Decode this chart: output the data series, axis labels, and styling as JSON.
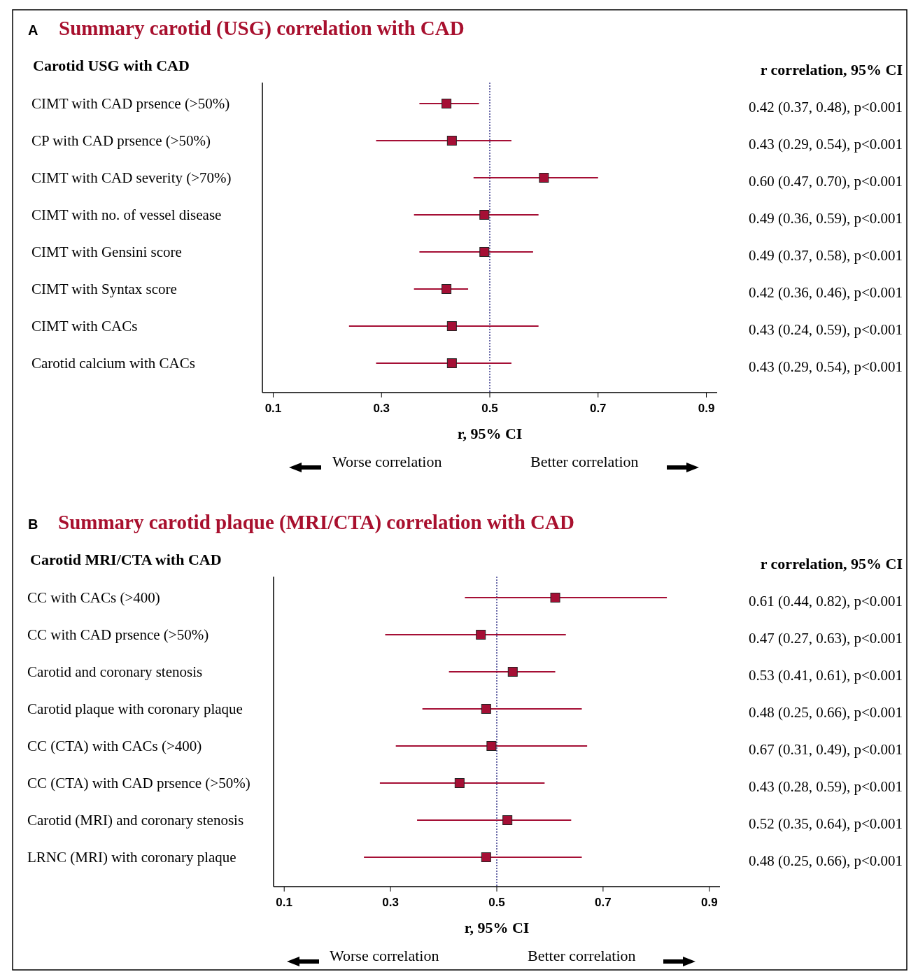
{
  "chart_data": [
    {
      "type": "scatter",
      "orientation": "horizontal",
      "title": "Summary carotid (USG) correlation with CAD",
      "ylabel": "Carotid USG with CAD",
      "xlabel": "r, 95% CI",
      "marker": "square",
      "color": "#a50f35",
      "grid": false,
      "categories": [
        "CIMT with CAD prsence (>50%)",
        "CP with CAD prsence (>50%)",
        "CIMT with CAD severity (>70%)",
        "CIMT with no. of vessel disease",
        "CIMT with Gensini score",
        "CIMT with Syntax score",
        "CIMT with CACs",
        "Carotid calcium with CACs"
      ],
      "values": [
        0.42,
        0.43,
        0.6,
        0.49,
        0.49,
        0.42,
        0.43,
        0.43
      ],
      "errors": [
        [
          0.37,
          0.48
        ],
        [
          0.29,
          0.54
        ],
        [
          0.47,
          0.7
        ],
        [
          0.36,
          0.59
        ],
        [
          0.37,
          0.58
        ],
        [
          0.36,
          0.46
        ],
        [
          0.24,
          0.59
        ],
        [
          0.29,
          0.54
        ]
      ],
      "value_labels": [
        "0.42 (0.37, 0.48), p<0.001",
        "0.43 (0.29, 0.54), p<0.001",
        "0.60 (0.47, 0.70), p<0.001",
        "0.49 (0.36, 0.59), p<0.001",
        "0.49 (0.37, 0.58), p<0.001",
        "0.42 (0.36, 0.46), p<0.001",
        "0.43 (0.24, 0.59), p<0.001",
        "0.43 (0.29, 0.54), p<0.001"
      ],
      "xlim": [
        0.08,
        0.92
      ],
      "xticks": [
        0.1,
        0.3,
        0.5,
        0.7,
        0.9
      ],
      "ref_lines": [
        {
          "axis": "x",
          "value": 0.5,
          "color": "#3a3a8c",
          "line_style": "dotted"
        }
      ],
      "annotations": [
        "A",
        "r correlation, 95% CI",
        "Worse correlation",
        "Better correlation"
      ]
    },
    {
      "type": "scatter",
      "orientation": "horizontal",
      "title": "Summary carotid plaque (MRI/CTA) correlation with CAD",
      "ylabel": "Carotid MRI/CTA with CAD",
      "xlabel": "r, 95% CI",
      "marker": "square",
      "color": "#a50f35",
      "grid": false,
      "categories": [
        "CC with CACs (>400)",
        "CC with CAD prsence (>50%)",
        "Carotid and coronary stenosis",
        "Carotid plaque with coronary plaque",
        "CC (CTA) with CACs (>400)",
        "CC (CTA) with CAD prsence (>50%)",
        "Carotid (MRI) and coronary stenosis",
        "LRNC (MRI) with coronary plaque"
      ],
      "values": [
        0.61,
        0.47,
        0.53,
        0.48,
        0.49,
        0.43,
        0.52,
        0.48
      ],
      "errors": [
        [
          0.44,
          0.82
        ],
        [
          0.29,
          0.63
        ],
        [
          0.41,
          0.61
        ],
        [
          0.36,
          0.66
        ],
        [
          0.31,
          0.67
        ],
        [
          0.28,
          0.59
        ],
        [
          0.35,
          0.64
        ],
        [
          0.25,
          0.66
        ]
      ],
      "value_labels": [
        "0.61 (0.44, 0.82), p<0.001",
        "0.47 (0.27, 0.63), p<0.001",
        "0.53 (0.41, 0.61), p<0.001",
        "0.48 (0.25, 0.66), p<0.001",
        "0.67 (0.31, 0.49), p<0.001",
        "0.43 (0.28, 0.59), p<0.001",
        "0.52 (0.35, 0.64), p<0.001",
        "0.48 (0.25, 0.66), p<0.001"
      ],
      "xlim": [
        0.08,
        0.92
      ],
      "xticks": [
        0.1,
        0.3,
        0.5,
        0.7,
        0.9
      ],
      "ref_lines": [
        {
          "axis": "x",
          "value": 0.5,
          "color": "#3a3a8c",
          "line_style": "dotted"
        }
      ],
      "annotations": [
        "B",
        "r correlation, 95% CI",
        "Worse correlation",
        "Better correlation"
      ]
    }
  ]
}
